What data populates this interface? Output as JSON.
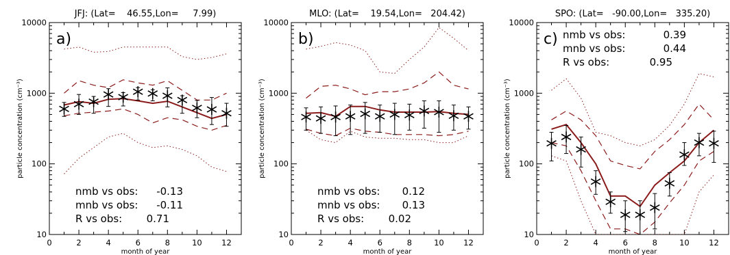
{
  "chart_data": [
    {
      "type": "line",
      "panel_label": "a)",
      "title": "JFJ: (Lat=    46.55,Lon=     7.99)",
      "xlabel": "month of year",
      "ylabel": "particle concentration (cm⁻³)",
      "xlim": [
        0,
        13
      ],
      "ylim": [
        10,
        10000
      ],
      "yscale": "log",
      "x_ticks": [
        "0",
        "2",
        "4",
        "6",
        "8",
        "10",
        "12"
      ],
      "y_ticks": [
        "10",
        "100",
        "1000",
        "10000"
      ],
      "months": [
        1,
        2,
        3,
        4,
        5,
        6,
        7,
        8,
        9,
        10,
        11,
        12
      ],
      "observations": {
        "values": [
          600,
          700,
          760,
          960,
          880,
          1050,
          990,
          920,
          800,
          620,
          590,
          520
        ],
        "err_low": [
          470,
          500,
          520,
          650,
          660,
          800,
          780,
          640,
          520,
          450,
          360,
          340
        ],
        "err_high": [
          740,
          960,
          900,
          1160,
          1020,
          1200,
          1120,
          1190,
          920,
          790,
          870,
          720
        ]
      },
      "model_median": [
        680,
        760,
        720,
        820,
        840,
        780,
        720,
        770,
        640,
        530,
        440,
        500
      ],
      "model_inner_low": [
        480,
        520,
        540,
        560,
        600,
        500,
        380,
        450,
        420,
        340,
        300,
        350
      ],
      "model_inner_high": [
        1000,
        1500,
        1300,
        1200,
        1550,
        1400,
        1300,
        1500,
        1100,
        800,
        800,
        1000
      ],
      "model_outer_low": [
        72,
        120,
        170,
        240,
        270,
        200,
        170,
        180,
        160,
        130,
        90,
        78
      ],
      "model_outer_high": [
        4200,
        4500,
        3800,
        3900,
        4500,
        4500,
        4500,
        4500,
        3300,
        3000,
        3200,
        3600
      ],
      "stats": [
        {
          "label": "nmb vs obs:",
          "value": "-0.13"
        },
        {
          "label": "mnb vs obs:",
          "value": "-0.11"
        },
        {
          "label": "R vs obs:",
          "value": "0.71"
        }
      ],
      "stats_position": "bottom-left",
      "line_color": "#8b1a1a",
      "marker_color": "#000000"
    },
    {
      "type": "line",
      "panel_label": "b)",
      "title": "MLO: (Lat=    19.54,Lon=   204.42)",
      "xlabel": "month of year",
      "ylabel": "particle concentration (cm⁻³)",
      "xlim": [
        0,
        13
      ],
      "ylim": [
        10,
        10000
      ],
      "yscale": "log",
      "x_ticks": [
        "0",
        "2",
        "4",
        "6",
        "8",
        "10",
        "12"
      ],
      "y_ticks": [
        "10",
        "100",
        "1000",
        "10000"
      ],
      "months": [
        1,
        2,
        3,
        4,
        5,
        6,
        7,
        8,
        9,
        10,
        11,
        12
      ],
      "observations": {
        "values": [
          460,
          440,
          460,
          470,
          510,
          470,
          500,
          490,
          560,
          540,
          480,
          470
        ],
        "err_low": [
          300,
          270,
          250,
          260,
          270,
          280,
          260,
          300,
          320,
          280,
          300,
          310
        ],
        "err_high": [
          620,
          640,
          660,
          680,
          740,
          680,
          720,
          700,
          780,
          780,
          680,
          640
        ]
      },
      "model_median": [
        520,
        530,
        470,
        650,
        650,
        580,
        540,
        540,
        540,
        550,
        520,
        500
      ],
      "model_inner_low": [
        310,
        270,
        250,
        320,
        290,
        280,
        260,
        260,
        260,
        250,
        260,
        290
      ],
      "model_inner_high": [
        850,
        1250,
        1300,
        1150,
        950,
        1050,
        1050,
        1150,
        1400,
        2000,
        1300,
        1150
      ],
      "model_outer_low": [
        300,
        220,
        200,
        290,
        240,
        230,
        230,
        220,
        220,
        200,
        200,
        250
      ],
      "model_outer_high": [
        4200,
        4600,
        5200,
        4800,
        4000,
        2000,
        1900,
        3000,
        4500,
        8500,
        6000,
        4000
      ],
      "stats": [
        {
          "label": "nmb vs obs:",
          "value": "0.12"
        },
        {
          "label": "mnb vs obs:",
          "value": "0.13"
        },
        {
          "label": "R vs obs:",
          "value": "0.02"
        }
      ],
      "stats_position": "bottom-left",
      "line_color": "#8b1a1a",
      "marker_color": "#000000"
    },
    {
      "type": "line",
      "panel_label": "c)",
      "title": "SPO: (Lat=   -90.00,Lon=   335.20)",
      "xlabel": "month of year",
      "ylabel": "particle concentration (cm⁻³)",
      "xlim": [
        0,
        13
      ],
      "ylim": [
        10,
        10000
      ],
      "yscale": "log",
      "x_ticks": [
        "0",
        "2",
        "4",
        "6",
        "8",
        "10",
        "12"
      ],
      "y_ticks": [
        "10",
        "100",
        "1000",
        "10000"
      ],
      "months": [
        1,
        2,
        3,
        4,
        5,
        6,
        7,
        8,
        9,
        10,
        11,
        12
      ],
      "observations": {
        "values": [
          195,
          240,
          160,
          56,
          29,
          19,
          19,
          24,
          53,
          135,
          200,
          195
        ],
        "err_low": [
          110,
          140,
          90,
          37,
          20,
          11,
          10,
          12,
          35,
          95,
          130,
          105
        ],
        "err_high": [
          280,
          350,
          240,
          80,
          40,
          30,
          30,
          38,
          75,
          200,
          270,
          290
        ]
      },
      "model_median": [
        310,
        360,
        200,
        100,
        35,
        35,
        25,
        50,
        75,
        110,
        200,
        300
      ],
      "model_inner_low": [
        200,
        180,
        80,
        30,
        12,
        12,
        10,
        15,
        28,
        50,
        110,
        150
      ],
      "model_inner_high": [
        420,
        560,
        420,
        250,
        110,
        95,
        85,
        150,
        220,
        360,
        700,
        420
      ],
      "model_outer_low": [
        130,
        110,
        30,
        10,
        10,
        10,
        10,
        10,
        10,
        10,
        40,
        70
      ],
      "model_outer_high": [
        1100,
        1600,
        850,
        280,
        250,
        200,
        180,
        220,
        350,
        700,
        1900,
        1700
      ],
      "stats": [
        {
          "label": "nmb vs obs:",
          "value": "0.39"
        },
        {
          "label": "mnb vs obs:",
          "value": "0.44"
        },
        {
          "label": "R vs obs:",
          "value": "0.95"
        }
      ],
      "stats_position": "top-left",
      "line_color": "#8b1a1a",
      "marker_color": "#000000"
    }
  ]
}
